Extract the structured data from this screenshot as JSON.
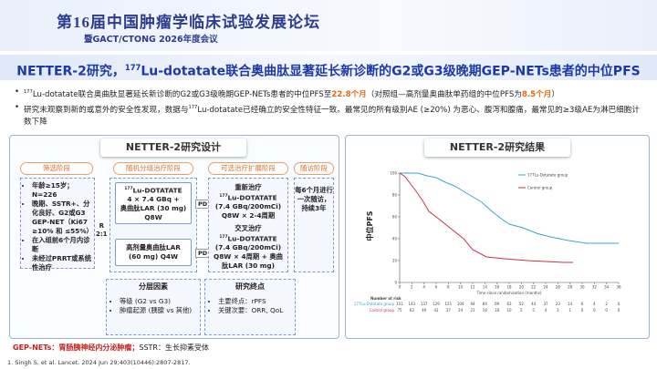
{
  "header": {
    "title": "第16届中国肿瘤学临床试验发展论坛",
    "subtitle": "暨GACT/CTONG 2026年度会议"
  },
  "slide_title": {
    "part1": "NETTER-2研究，",
    "sup": "177",
    "part2": "Lu-dotatate联合奥曲肽显著延长新诊断的G2或G3级晚期GEP-NETs患者的中位PFS"
  },
  "bullets": [
    {
      "sup": "177",
      "text1": "Lu-dotatate联合奥曲肽显著延长新诊断的G2或G3级晚期GEP-NETs患者的中位PFS至",
      "highlight1": "22.8个月",
      "text2": "（对照组—高剂量奥曲肽单药组的中位PFS为",
      "highlight2": "8.5个月",
      "text3": "）"
    },
    {
      "text1": "研究未观察到新的或意外的安全性发现，数据与",
      "sup": "177",
      "text2": "Lu-dotatate已经确立的安全性特征一致。最常见的所有级别AE (≥20%) 为恶心、腹泻和腹痛，最常见的≥3级AE为淋巴细胞计数下降"
    }
  ],
  "design": {
    "title": "NETTER-2研究设计",
    "phases": [
      "筛选阶段",
      "随机分组治疗阶段",
      "可选治疗扩展阶段",
      "随访阶段"
    ],
    "eligibility": [
      "年龄≥15岁；N=226",
      "晚期、SSTR+、分化良好、G2或G3 GEP-NET（Ki67 ≥10% 和 ≤55%）",
      "在入组前6个月内诊断",
      "未经过PRRT或系统性治疗"
    ],
    "randomization": [
      "R",
      "2:1"
    ],
    "arm1": {
      "sup": "177",
      "lines": [
        "Lu-DOTATATE",
        "4 × 7.4 GBq +",
        "奥曲肽LAR (30 mg)",
        "Q8W"
      ]
    },
    "arm2": [
      "高剂量奥曲肽LAR",
      "(60 mg) Q4W"
    ],
    "pd": "PD",
    "retreat": {
      "line1": "重新治疗",
      "sup": "177",
      "lines": [
        "Lu-DOTATATE",
        "(7.4 GBq/200mCi)",
        "Q8W × 2-4周期"
      ]
    },
    "crossover": {
      "line1": "交叉治疗",
      "sup": "177",
      "lines": [
        "Lu-DOTATATE",
        "(7.4 GBq/200mCi)",
        "Q8W × 4周期 + 奥曲",
        "肽LAR (30 mg)"
      ]
    },
    "followup": [
      "每6个月进行",
      "一次随访，",
      "持续3年"
    ],
    "strat": {
      "title": "分层因素",
      "items": [
        "等级 (G2 vs G3)",
        "肿瘤起源 (胰腺 vs 其他)"
      ]
    },
    "endpoints": {
      "title": "研究终点",
      "items": [
        "主要终点：rPFS",
        "关键次要：ORR, QoL"
      ]
    }
  },
  "results": {
    "title": "NETTER-2研究结果",
    "ylabel": "中位PFS",
    "yticks": [
      0,
      20,
      40,
      60,
      80,
      100
    ],
    "xticks": [
      0,
      2,
      4,
      6,
      8,
      10,
      12,
      14,
      16,
      18,
      20,
      22,
      24,
      26,
      28,
      30,
      32,
      34,
      36
    ],
    "xlabel": "Time since randomisation (months)",
    "legend": [
      "177Lu-Dotatate group",
      "Control group"
    ],
    "risk_title": "Number at risk",
    "risk": [
      {
        "name": "177Lu-Dotatate group",
        "values": [
          151,
          143,
          137,
          129,
          121,
          104,
          94,
          84,
          69,
          63,
          52,
          44,
          37,
          23,
          14,
          6,
          4,
          2,
          0
        ]
      },
      {
        "name": "Control group",
        "values": [
          75,
          62,
          49,
          42,
          37,
          24,
          21,
          16,
          18,
          10,
          5,
          5,
          4,
          3,
          1,
          0,
          0,
          0,
          0
        ]
      }
    ]
  },
  "footer": {
    "abbr_bold": "GEP-NETs：胃肠胰神经内分泌肿瘤；",
    "abbr": "SSTR：生长抑素受体",
    "reference": "1. Singh S, et al. Lancet. 2024 Jun 29;403(10446):2807-2817."
  }
}
